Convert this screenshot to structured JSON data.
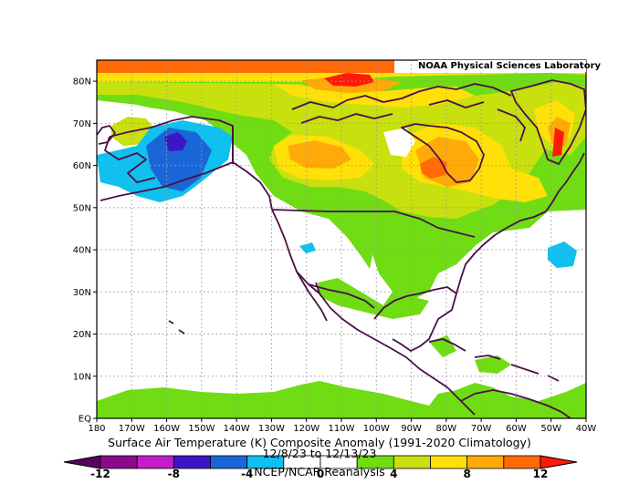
{
  "map": {
    "credit": "NOAA Physical Sciences Laboratory",
    "title_line1": "Surface Air Temperature (K) Composite Anomaly (1991-2020 Climatology)",
    "title_line2": "12/8/23 to 12/13/23",
    "title_line3": "NCEP/NCAR Reanalysis",
    "lat_labels": [
      "80N",
      "70N",
      "60N",
      "50N",
      "40N",
      "30N",
      "20N",
      "10N",
      "EQ"
    ],
    "lon_labels": [
      "180",
      "170W",
      "160W",
      "150W",
      "140W",
      "130W",
      "120W",
      "110W",
      "100W",
      "90W",
      "80W",
      "70W",
      "60W",
      "50W",
      "40W"
    ],
    "projection_extent": {
      "lon": [
        -180,
        -40
      ],
      "lat": [
        0,
        85
      ]
    }
  },
  "colorbar": {
    "labels": [
      "-12",
      "-8",
      "-4",
      "0",
      "4",
      "8",
      "12"
    ],
    "levels": [
      -12,
      -10,
      -8,
      -6,
      -4,
      -2,
      0,
      2,
      4,
      6,
      8,
      10,
      12
    ],
    "colors": [
      "#8b0a8c",
      "#c21ec5",
      "#3a16c7",
      "#1a66d6",
      "#10c0ee",
      "#ffffff",
      "#ffffff",
      "#6fdc14",
      "#c8e00e",
      "#ffe009",
      "#ffaa08",
      "#ff6a06"
    ],
    "under_color": "#55075c",
    "over_color": "#ff1a08"
  },
  "colors": {
    "coast": "#4b0f47",
    "grid": "#9a9a9a",
    "green": "#6fdc14",
    "lime": "#c8e00e",
    "yellow": "#ffe009",
    "orange": "#ffaa08",
    "darkorange": "#ff6a06",
    "red": "#ff1a08",
    "cyan": "#10c0ee",
    "blue": "#1a66d6",
    "indigo": "#3a16c7"
  }
}
